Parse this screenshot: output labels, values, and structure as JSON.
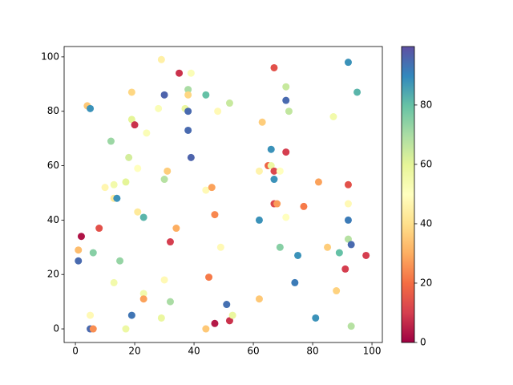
{
  "chart_data": {
    "type": "scatter",
    "x": [
      1,
      1,
      2,
      4,
      5,
      5,
      5,
      6,
      6,
      8,
      10,
      12,
      13,
      13,
      14,
      13,
      15,
      17,
      17,
      18,
      19,
      19,
      19,
      20,
      21,
      21,
      23,
      23,
      23,
      24,
      28,
      29,
      29,
      30,
      30,
      30,
      31,
      32,
      32,
      34,
      35,
      37,
      38,
      38,
      38,
      38,
      39,
      39,
      44,
      44,
      44,
      45,
      46,
      47,
      47,
      48,
      49,
      51,
      52,
      52,
      53,
      62,
      62,
      62,
      63,
      65,
      66,
      66,
      67,
      67,
      67,
      67,
      68,
      69,
      69,
      71,
      71,
      71,
      71,
      72,
      74,
      75,
      77,
      81,
      82,
      85,
      87,
      88,
      89,
      91,
      92,
      92,
      92,
      92,
      92,
      93,
      93,
      95,
      98
    ],
    "y": [
      29,
      25,
      34,
      82,
      81,
      5,
      0,
      0,
      28,
      37,
      52,
      69,
      53,
      48,
      48,
      17,
      25,
      54,
      0,
      63,
      87,
      77,
      5,
      75,
      59,
      43,
      41,
      13,
      11,
      72,
      81,
      99,
      4,
      86,
      18,
      55,
      58,
      32,
      10,
      37,
      94,
      81,
      80,
      73,
      88,
      86,
      94,
      63,
      86,
      51,
      0,
      19,
      52,
      42,
      2,
      80,
      30,
      9,
      83,
      3,
      5,
      11,
      58,
      40,
      76,
      60,
      60,
      66,
      96,
      58,
      55,
      46,
      46,
      58,
      30,
      89,
      84,
      41,
      65,
      80,
      17,
      27,
      45,
      4,
      54,
      30,
      78,
      14,
      28,
      22,
      98,
      53,
      46,
      40,
      33,
      31,
      1,
      87,
      27
    ],
    "c": [
      33,
      95,
      3,
      35,
      88,
      48,
      95,
      25,
      75,
      14,
      47,
      72,
      55,
      43,
      88,
      55,
      73,
      60,
      57,
      63,
      38,
      60,
      93,
      8,
      50,
      43,
      82,
      55,
      28,
      52,
      52,
      45,
      58,
      96,
      48,
      68,
      36,
      10,
      70,
      30,
      8,
      58,
      95,
      95,
      70,
      38,
      52,
      96,
      80,
      48,
      35,
      22,
      28,
      24,
      4,
      48,
      48,
      94,
      65,
      8,
      58,
      35,
      46,
      88,
      36,
      18,
      57,
      88,
      14,
      12,
      88,
      12,
      27,
      50,
      75,
      65,
      95,
      50,
      10,
      66,
      92,
      88,
      22,
      88,
      28,
      36,
      55,
      37,
      80,
      10,
      88,
      14,
      48,
      92,
      68,
      95,
      68,
      82,
      10
    ],
    "colormap": "Spectral",
    "clim": [
      0,
      99.7
    ],
    "cticks": [
      0,
      20,
      40,
      60,
      80
    ],
    "xlim": [
      -3.8,
      103.5
    ],
    "xticks": [
      0,
      20,
      40,
      60,
      80,
      100
    ],
    "ylim": [
      -5,
      103.8
    ],
    "yticks": [
      0,
      20,
      40,
      60,
      80,
      100
    ]
  }
}
